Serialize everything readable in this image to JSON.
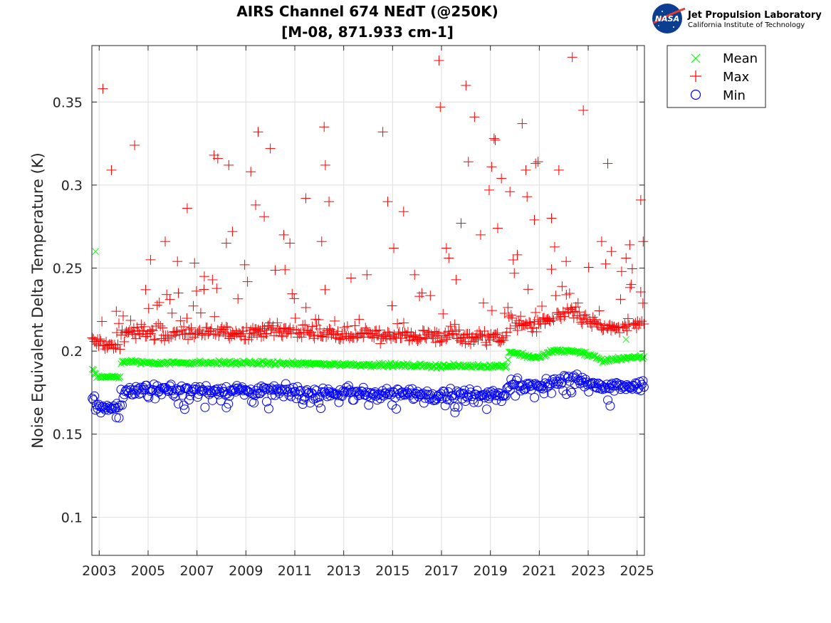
{
  "logo": {
    "name": "Jet Propulsion Laboratory",
    "subtitle": "California Institute of Technology",
    "badge": "NASA"
  },
  "chart_data": {
    "type": "scatter",
    "title": "AIRS Channel 674 NEdT (@250K)",
    "subtitle": "[M-08, 871.933 cm-1]",
    "xlabel": "",
    "ylabel": "Noise Equivalent Delta Temperature (K)",
    "xlim": [
      2002.7,
      2025.3
    ],
    "ylim": [
      0.077,
      0.384
    ],
    "x_ticks": [
      2003,
      2005,
      2007,
      2009,
      2011,
      2013,
      2015,
      2017,
      2019,
      2021,
      2023,
      2025
    ],
    "x_tick_labels": [
      "2003",
      "2005",
      "2007",
      "2009",
      "2011",
      "2013",
      "2015",
      "2017",
      "2019",
      "2021",
      "2023",
      "2025"
    ],
    "y_ticks": [
      0.1,
      0.15,
      0.2,
      0.25,
      0.3,
      0.35
    ],
    "y_tick_labels": [
      "0.1",
      "0.15",
      "0.2",
      "0.25",
      "0.3",
      "0.35"
    ],
    "grid": true,
    "legend_position": "outside-top-right",
    "series": [
      {
        "name": "Mean",
        "marker": "x",
        "color": "#00ff00",
        "baseline": [
          [
            2002.7,
            0.19
          ],
          [
            2002.9,
            0.185
          ],
          [
            2003.85,
            0.184
          ],
          [
            2003.9,
            0.194
          ],
          [
            2005,
            0.193
          ],
          [
            2009,
            0.193
          ],
          [
            2013,
            0.192
          ],
          [
            2017,
            0.191
          ],
          [
            2019.7,
            0.191
          ],
          [
            2019.75,
            0.2
          ],
          [
            2020.5,
            0.197
          ],
          [
            2021,
            0.196
          ],
          [
            2021.5,
            0.2
          ],
          [
            2022.5,
            0.2
          ],
          [
            2023.2,
            0.197
          ],
          [
            2023.6,
            0.194
          ],
          [
            2024.5,
            0.196
          ],
          [
            2025.3,
            0.196
          ]
        ],
        "outliers": [
          [
            2002.85,
            0.26
          ],
          [
            2024.55,
            0.207
          ]
        ]
      },
      {
        "name": "Max",
        "marker": "+",
        "color": "#ff0000",
        "baseline": [
          [
            2002.7,
            0.206
          ],
          [
            2003.85,
            0.202
          ],
          [
            2003.9,
            0.211
          ],
          [
            2007,
            0.211
          ],
          [
            2011,
            0.212
          ],
          [
            2013,
            0.21
          ],
          [
            2017,
            0.209
          ],
          [
            2019.7,
            0.208
          ],
          [
            2019.75,
            0.217
          ],
          [
            2020.7,
            0.216
          ],
          [
            2021,
            0.215
          ],
          [
            2021.5,
            0.221
          ],
          [
            2022.5,
            0.222
          ],
          [
            2023.2,
            0.217
          ],
          [
            2023.6,
            0.214
          ],
          [
            2025.3,
            0.215
          ]
        ],
        "outliers": [
          [
            2003.15,
            0.358
          ],
          [
            2003.5,
            0.309
          ],
          [
            2003.7,
            0.224
          ],
          [
            2004.45,
            0.324
          ],
          [
            2004.9,
            0.237
          ],
          [
            2005.1,
            0.255
          ],
          [
            2005.7,
            0.266
          ],
          [
            2006.2,
            0.254
          ],
          [
            2006.6,
            0.286
          ],
          [
            2007.3,
            0.245
          ],
          [
            2007.7,
            0.318
          ],
          [
            2007.85,
            0.316
          ],
          [
            2008.2,
            0.265
          ],
          [
            2008.3,
            0.312
          ],
          [
            2008.45,
            0.272
          ],
          [
            2008.95,
            0.252
          ],
          [
            2009.2,
            0.308
          ],
          [
            2009.4,
            0.288
          ],
          [
            2009.5,
            0.332
          ],
          [
            2009.75,
            0.281
          ],
          [
            2010.0,
            0.322
          ],
          [
            2010.6,
            0.249
          ],
          [
            2010.8,
            0.265
          ],
          [
            2011.45,
            0.292
          ],
          [
            2012.1,
            0.266
          ],
          [
            2012.2,
            0.335
          ],
          [
            2012.25,
            0.312
          ],
          [
            2012.4,
            0.29
          ],
          [
            2013.3,
            0.244
          ],
          [
            2014.6,
            0.332
          ],
          [
            2014.8,
            0.29
          ],
          [
            2015.05,
            0.262
          ],
          [
            2015.45,
            0.284
          ],
          [
            2016.1,
            0.233
          ],
          [
            2016.9,
            0.375
          ],
          [
            2016.95,
            0.347
          ],
          [
            2017.3,
            0.256
          ],
          [
            2017.6,
            0.243
          ],
          [
            2017.8,
            0.277
          ],
          [
            2018.0,
            0.36
          ],
          [
            2018.1,
            0.314
          ],
          [
            2018.35,
            0.341
          ],
          [
            2018.6,
            0.27
          ],
          [
            2018.95,
            0.297
          ],
          [
            2019.05,
            0.311
          ],
          [
            2019.15,
            0.328
          ],
          [
            2019.2,
            0.327
          ],
          [
            2019.3,
            0.274
          ],
          [
            2019.45,
            0.304
          ],
          [
            2019.8,
            0.296
          ],
          [
            2020.3,
            0.337
          ],
          [
            2020.45,
            0.309
          ],
          [
            2020.5,
            0.293
          ],
          [
            2020.8,
            0.279
          ],
          [
            2020.85,
            0.313
          ],
          [
            2020.95,
            0.314
          ],
          [
            2021.5,
            0.28
          ],
          [
            2021.8,
            0.309
          ],
          [
            2022.35,
            0.377
          ],
          [
            2022.8,
            0.345
          ],
          [
            2023.55,
            0.266
          ],
          [
            2023.8,
            0.313
          ],
          [
            2023.95,
            0.26
          ],
          [
            2024.7,
            0.264
          ],
          [
            2025.15,
            0.291
          ],
          [
            2025.25,
            0.266
          ],
          [
            2006.9,
            0.253
          ],
          [
            2010.55,
            0.27
          ],
          [
            2013.95,
            0.246
          ],
          [
            2015.9,
            0.246
          ],
          [
            2017.2,
            0.262
          ],
          [
            2020.1,
            0.258
          ],
          [
            2022.1,
            0.254
          ],
          [
            2024.55,
            0.256
          ]
        ]
      },
      {
        "name": "Min",
        "marker": "o",
        "color": "#0000ff",
        "baseline": [
          [
            2002.7,
            0.172
          ],
          [
            2003.0,
            0.167
          ],
          [
            2003.85,
            0.166
          ],
          [
            2003.9,
            0.176
          ],
          [
            2005,
            0.177
          ],
          [
            2009,
            0.176
          ],
          [
            2013,
            0.175
          ],
          [
            2017,
            0.174
          ],
          [
            2019.7,
            0.175
          ],
          [
            2019.75,
            0.181
          ],
          [
            2020.5,
            0.18
          ],
          [
            2021,
            0.178
          ],
          [
            2021.5,
            0.182
          ],
          [
            2022.5,
            0.183
          ],
          [
            2023.2,
            0.18
          ],
          [
            2023.6,
            0.178
          ],
          [
            2025.3,
            0.179
          ]
        ],
        "outliers": [
          [
            2003.7,
            0.16
          ],
          [
            2017.55,
            0.163
          ],
          [
            2023.9,
            0.167
          ],
          [
            2006.5,
            0.165
          ],
          [
            2018.85,
            0.165
          ],
          [
            2008.2,
            0.166
          ]
        ]
      }
    ]
  }
}
